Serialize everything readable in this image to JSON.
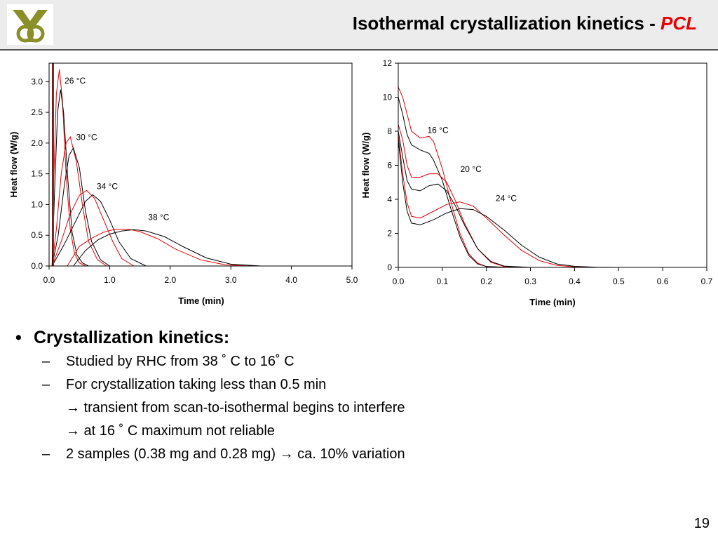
{
  "slide": {
    "title_main": "Isothermal crystallization kinetics - ",
    "title_accent": "PCL",
    "page_number": "19",
    "colors": {
      "accent": "#e60000",
      "logo_green": "#8a8f2a",
      "header_bg": "#ececec"
    },
    "logo_icon": "university-logo-icon"
  },
  "bullets": {
    "main": "Crystallization kinetics:",
    "bullet_char": "•",
    "dash_char": "–",
    "items": [
      "Studied by RHC from 38 ˚ C to 16˚ C",
      "For crystallization taking less than 0.5 min",
      "→ transient from scan-to-isothermal begins to interfere",
      "→ at 16 ˚ C maximum not reliable",
      "2 samples (0.38 mg and 0.28 mg) → ca. 10% variation"
    ]
  },
  "chart_data": [
    {
      "type": "line",
      "xlabel": "Time (min)",
      "ylabel": "Heat flow (W/g)",
      "xlim": [
        0,
        5
      ],
      "ylim": [
        0,
        3.3
      ],
      "xticks": [
        "0.0",
        "1.0",
        "2.0",
        "3.0",
        "4.0",
        "5.0"
      ],
      "yticks": [
        "0.0",
        "0.5",
        "1.0",
        "1.5",
        "2.0",
        "2.5",
        "3.0"
      ],
      "grid": false,
      "annotations": [
        {
          "text": "26 °C",
          "x": 0.43,
          "y": 2.97
        },
        {
          "text": "30 °C",
          "x": 0.62,
          "y": 2.05
        },
        {
          "text": "34 °C",
          "x": 0.96,
          "y": 1.25
        },
        {
          "text": "38 °C",
          "x": 1.81,
          "y": 0.75
        }
      ],
      "series": [
        {
          "color": "#e60000",
          "x": [
            0.05,
            0.08,
            0.12,
            0.17,
            0.22,
            0.28,
            0.35,
            0.42,
            0.5,
            0.6
          ],
          "y": [
            0,
            1.5,
            2.8,
            3.2,
            2.7,
            1.5,
            0.6,
            0.2,
            0.05,
            0
          ]
        },
        {
          "color": "#000000",
          "x": [
            0.05,
            0.09,
            0.14,
            0.19,
            0.24,
            0.31,
            0.38,
            0.46,
            0.55,
            0.65
          ],
          "y": [
            0,
            1.2,
            2.5,
            2.87,
            2.5,
            1.4,
            0.55,
            0.18,
            0.05,
            0
          ]
        },
        {
          "color": "#e60000",
          "x": [
            0.05,
            0.12,
            0.2,
            0.28,
            0.35,
            0.45,
            0.55,
            0.65,
            0.8,
            0.95
          ],
          "y": [
            0,
            0.6,
            1.5,
            2.0,
            2.1,
            1.7,
            1.0,
            0.4,
            0.1,
            0
          ]
        },
        {
          "color": "#000000",
          "x": [
            0.05,
            0.15,
            0.25,
            0.33,
            0.4,
            0.5,
            0.6,
            0.7,
            0.85,
            1.0
          ],
          "y": [
            0,
            0.5,
            1.3,
            1.8,
            1.92,
            1.6,
            0.9,
            0.4,
            0.1,
            0
          ]
        },
        {
          "color": "#e60000",
          "x": [
            0.05,
            0.2,
            0.35,
            0.5,
            0.62,
            0.75,
            0.9,
            1.05,
            1.2,
            1.4
          ],
          "y": [
            0,
            0.4,
            0.85,
            1.15,
            1.23,
            1.1,
            0.75,
            0.4,
            0.12,
            0
          ]
        },
        {
          "color": "#000000",
          "x": [
            0.05,
            0.25,
            0.45,
            0.6,
            0.72,
            0.85,
            1.0,
            1.15,
            1.35,
            1.6
          ],
          "y": [
            0,
            0.35,
            0.75,
            1.05,
            1.16,
            1.05,
            0.75,
            0.4,
            0.12,
            0
          ]
        },
        {
          "color": "#e60000",
          "x": [
            0.3,
            0.5,
            0.7,
            0.9,
            1.1,
            1.3,
            1.5,
            1.8,
            2.1,
            2.5,
            2.9,
            3.3
          ],
          "y": [
            0,
            0.32,
            0.45,
            0.55,
            0.6,
            0.6,
            0.56,
            0.44,
            0.27,
            0.1,
            0.02,
            0
          ]
        },
        {
          "color": "#000000",
          "x": [
            0.4,
            0.6,
            0.8,
            1.0,
            1.2,
            1.4,
            1.6,
            1.9,
            2.2,
            2.6,
            3.0,
            3.5
          ],
          "y": [
            0,
            0.25,
            0.42,
            0.52,
            0.57,
            0.59,
            0.57,
            0.48,
            0.32,
            0.13,
            0.03,
            0
          ]
        },
        {
          "color": "#000000",
          "x": [
            0.06,
            0.06
          ],
          "y": [
            0,
            3.3
          ]
        },
        {
          "color": "#e60000",
          "x": [
            0.07,
            0.07
          ],
          "y": [
            0,
            3.3
          ]
        }
      ]
    },
    {
      "type": "line",
      "xlabel": "Time (min)",
      "ylabel": "Heat flow (W/g)",
      "xlim": [
        0,
        0.7
      ],
      "ylim": [
        0,
        12
      ],
      "xticks": [
        "0.0",
        "0.1",
        "0.2",
        "0.3",
        "0.4",
        "0.5",
        "0.6",
        "0.7"
      ],
      "yticks": [
        "0",
        "2",
        "4",
        "6",
        "8",
        "10",
        "12"
      ],
      "grid": false,
      "annotations": [
        {
          "text": "16 °C",
          "x": 0.09,
          "y": 7.9
        },
        {
          "text": "20 °C",
          "x": 0.165,
          "y": 5.6
        },
        {
          "text": "24 °C",
          "x": 0.245,
          "y": 3.9
        }
      ],
      "series": [
        {
          "color": "#e60000",
          "x": [
            0,
            0.01,
            0.02,
            0.03,
            0.05,
            0.07,
            0.08,
            0.1,
            0.12,
            0.14,
            0.16,
            0.18,
            0.2,
            0.25
          ],
          "y": [
            10.6,
            10,
            9,
            8,
            7.6,
            7.7,
            7.4,
            5.8,
            3.8,
            2.0,
            0.8,
            0.25,
            0.05,
            0
          ]
        },
        {
          "color": "#000000",
          "x": [
            0,
            0.01,
            0.02,
            0.03,
            0.05,
            0.07,
            0.08,
            0.1,
            0.12,
            0.14,
            0.16,
            0.18,
            0.2,
            0.25
          ],
          "y": [
            10,
            9.0,
            7.8,
            7.2,
            6.9,
            6.7,
            6.3,
            5.1,
            3.4,
            1.8,
            0.7,
            0.2,
            0.05,
            0
          ]
        },
        {
          "color": "#e60000",
          "x": [
            0,
            0.01,
            0.02,
            0.03,
            0.05,
            0.07,
            0.09,
            0.11,
            0.13,
            0.15,
            0.18,
            0.21,
            0.24,
            0.3
          ],
          "y": [
            8.4,
            7.5,
            6,
            5.3,
            5.3,
            5.5,
            5.5,
            5.0,
            3.9,
            2.6,
            1.1,
            0.3,
            0.05,
            0
          ]
        },
        {
          "color": "#000000",
          "x": [
            0,
            0.01,
            0.02,
            0.03,
            0.05,
            0.07,
            0.09,
            0.11,
            0.13,
            0.15,
            0.18,
            0.21,
            0.24,
            0.3
          ],
          "y": [
            8.0,
            6.5,
            5.1,
            4.6,
            4.5,
            4.8,
            4.9,
            4.5,
            3.6,
            2.5,
            1.1,
            0.35,
            0.08,
            0
          ]
        },
        {
          "color": "#e60000",
          "x": [
            0,
            0.01,
            0.02,
            0.03,
            0.05,
            0.08,
            0.11,
            0.14,
            0.17,
            0.2,
            0.24,
            0.28,
            0.32,
            0.36,
            0.4,
            0.45
          ],
          "y": [
            7.8,
            5.5,
            3.8,
            3.0,
            2.9,
            3.3,
            3.7,
            3.85,
            3.6,
            2.9,
            1.9,
            1.0,
            0.4,
            0.12,
            0.03,
            0
          ]
        },
        {
          "color": "#000000",
          "x": [
            0,
            0.01,
            0.02,
            0.03,
            0.05,
            0.08,
            0.11,
            0.14,
            0.17,
            0.2,
            0.24,
            0.28,
            0.32,
            0.36,
            0.4,
            0.45,
            0.5
          ],
          "y": [
            7.5,
            5,
            3.3,
            2.6,
            2.5,
            2.8,
            3.2,
            3.45,
            3.4,
            3.0,
            2.2,
            1.3,
            0.6,
            0.2,
            0.06,
            0.01,
            0
          ]
        }
      ]
    }
  ]
}
